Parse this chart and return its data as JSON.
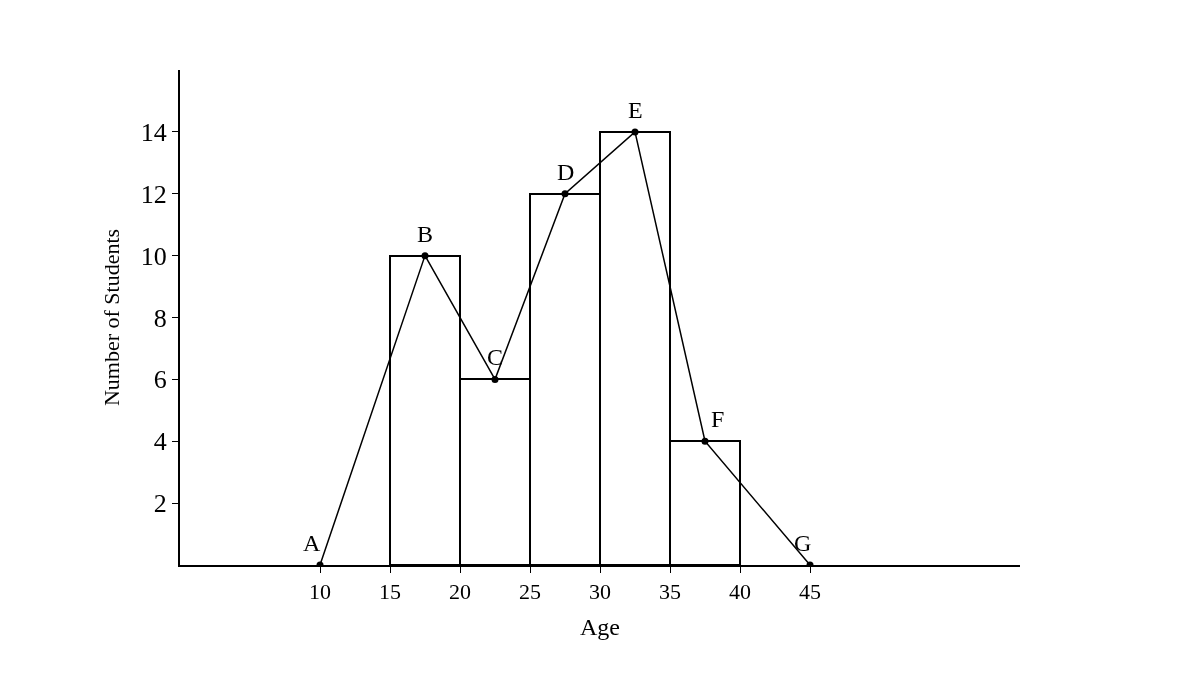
{
  "chart_data": {
    "type": "histogram",
    "xlabel": "Age",
    "ylabel": "Number of Students",
    "bins": [
      15,
      20,
      25,
      30,
      35,
      40
    ],
    "values": [
      10,
      6,
      12,
      14,
      4
    ],
    "color": "#ffffff",
    "series": [
      {
        "type": "line",
        "x": [
          10,
          17.5,
          22.5,
          27.5,
          32.5,
          37.5,
          45
        ],
        "values": [
          0,
          10,
          6,
          12,
          14,
          4,
          0
        ],
        "color": "#000000"
      }
    ],
    "marker": "circle",
    "xlim": [
      0,
      60
    ],
    "xticks": [
      10,
      15,
      20,
      25,
      30,
      35,
      40,
      45
    ],
    "ylim": [
      0,
      16
    ],
    "yticks": [
      2,
      4,
      6,
      8,
      10,
      12,
      14
    ],
    "annotations": [
      {
        "text": "A",
        "x": 10,
        "y": 0
      },
      {
        "text": "B",
        "x": 17.5,
        "y": 10
      },
      {
        "text": "C",
        "x": 22.5,
        "y": 6
      },
      {
        "text": "D",
        "x": 27.5,
        "y": 12
      },
      {
        "text": "E",
        "x": 32.5,
        "y": 14
      },
      {
        "text": "F",
        "x": 37.5,
        "y": 4
      },
      {
        "text": "G",
        "x": 45,
        "y": 0
      }
    ]
  }
}
